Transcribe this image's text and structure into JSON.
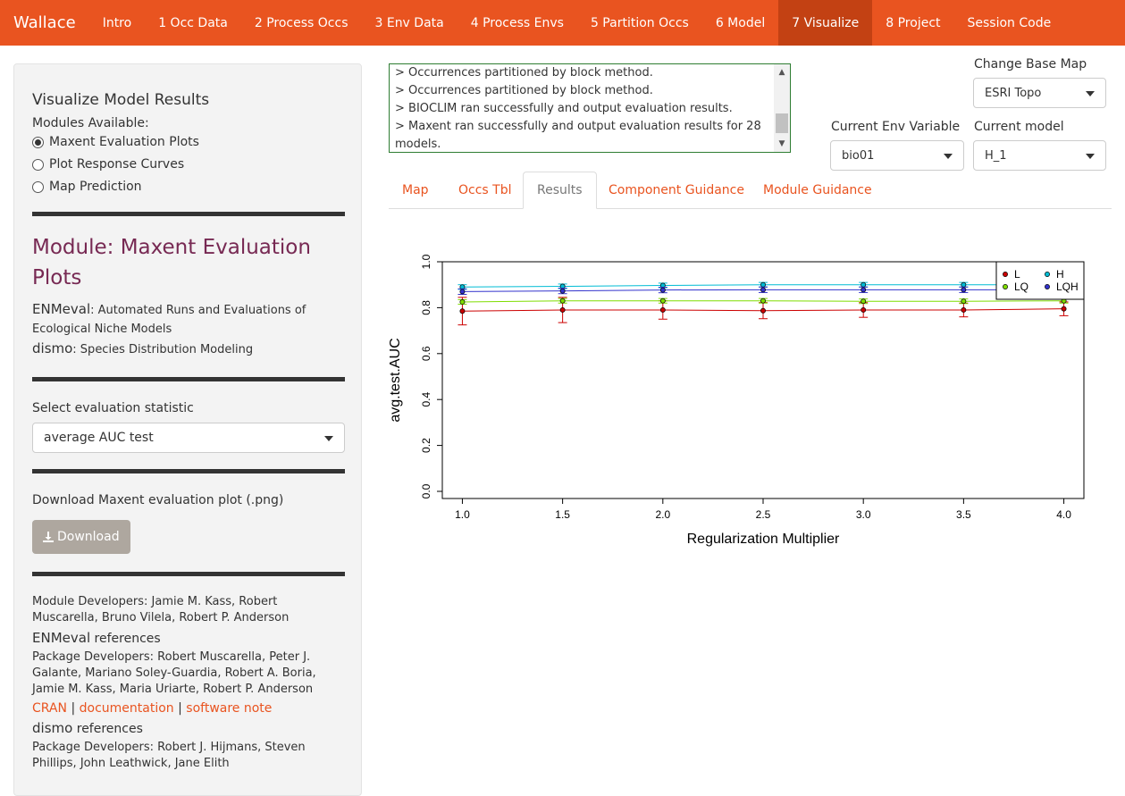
{
  "navbar": {
    "brand": "Wallace",
    "items": [
      {
        "label": "Intro",
        "active": false
      },
      {
        "label": "1 Occ Data",
        "active": false
      },
      {
        "label": "2 Process Occs",
        "active": false
      },
      {
        "label": "3 Env Data",
        "active": false
      },
      {
        "label": "4 Process Envs",
        "active": false
      },
      {
        "label": "5 Partition Occs",
        "active": false
      },
      {
        "label": "6 Model",
        "active": false
      },
      {
        "label": "7 Visualize",
        "active": true
      },
      {
        "label": "8 Project",
        "active": false
      },
      {
        "label": "Session Code",
        "active": false
      }
    ]
  },
  "sidebar": {
    "heading": "Visualize Model Results",
    "modules_label": "Modules Available:",
    "modules": [
      {
        "label": "Maxent Evaluation Plots",
        "selected": true
      },
      {
        "label": "Plot Response Curves",
        "selected": false
      },
      {
        "label": "Map Prediction",
        "selected": false
      }
    ],
    "module_title": "Module: Maxent Evaluation Plots",
    "pkg1_name": "ENMeval",
    "pkg1_desc": ": Automated Runs and Evaluations of Ecological Niche Models",
    "pkg2_name": "dismo",
    "pkg2_desc": ": Species Distribution Modeling",
    "stat_label": "Select evaluation statistic",
    "stat_value": "average AUC test",
    "download_label": "Download Maxent evaluation plot (.png)",
    "download_button": "Download",
    "module_devs": "Module Developers: Jamie M. Kass, Robert Muscarella, Bruno Vilela, Robert P. Anderson",
    "ref1_name": "ENMeval",
    "ref1_suffix": " references",
    "ref1_devs": "Package Developers: Robert Muscarella, Peter J. Galante, Mariano Soley-Guardia, Robert A. Boria, Jamie M. Kass, Maria Uriarte, Robert P. Anderson",
    "links": [
      "CRAN",
      "documentation",
      "software note"
    ],
    "link_sep": " | ",
    "ref2_name": "dismo",
    "ref2_suffix": " references",
    "ref2_devs": "Package Developers: Robert J. Hijmans, Steven Phillips, John Leathwick, Jane Elith"
  },
  "log": {
    "lines": [
      "> Occurrences partitioned by block method.",
      "> Occurrences partitioned by block method.",
      "> BIOCLIM ran successfully and output evaluation results.",
      "> Maxent ran successfully and output evaluation results for 28 models."
    ]
  },
  "controls": {
    "base_map_label": "Change Base Map",
    "base_map_value": "ESRI Topo",
    "env_var_label": "Current Env Variable",
    "env_var_value": "bio01",
    "model_label": "Current model",
    "model_value": "H_1"
  },
  "tabs": [
    {
      "label": "Map",
      "active": false
    },
    {
      "label": "Occs Tbl",
      "active": false
    },
    {
      "label": "Results",
      "active": true
    },
    {
      "label": "Component Guidance",
      "active": false
    },
    {
      "label": "Module Guidance",
      "active": false
    }
  ],
  "chart_data": {
    "type": "line",
    "xlabel": "Regularization Multiplier",
    "ylabel": "avg.test.AUC",
    "x": [
      1.0,
      1.5,
      2.0,
      2.5,
      3.0,
      3.5,
      4.0
    ],
    "x_tick_labels": [
      "1.0",
      "1.5",
      "2.0",
      "2.5",
      "3.0",
      "3.5",
      "4.0"
    ],
    "xlim": [
      0.9,
      4.1
    ],
    "ylim": [
      0.0,
      1.0
    ],
    "y_tick_labels": [
      "0.0",
      "0.2",
      "0.4",
      "0.6",
      "0.8",
      "1.0"
    ],
    "y_ticks": [
      0.0,
      0.2,
      0.4,
      0.6,
      0.8,
      1.0
    ],
    "legend_position": "top-right",
    "series": [
      {
        "name": "L",
        "color": "#cc0000",
        "values": [
          0.785,
          0.79,
          0.79,
          0.787,
          0.79,
          0.79,
          0.795
        ],
        "err": [
          0.06,
          0.055,
          0.04,
          0.035,
          0.032,
          0.03,
          0.03
        ]
      },
      {
        "name": "LQ",
        "color": "#7fdd00",
        "values": [
          0.825,
          0.83,
          0.83,
          0.83,
          0.828,
          0.828,
          0.83
        ],
        "err": [
          0.01,
          0.01,
          0.01,
          0.01,
          0.01,
          0.01,
          0.01
        ]
      },
      {
        "name": "H",
        "color": "#00bcd4",
        "values": [
          0.89,
          0.893,
          0.897,
          0.9,
          0.9,
          0.9,
          0.9
        ],
        "err": [
          0.01,
          0.01,
          0.01,
          0.01,
          0.01,
          0.01,
          0.01
        ]
      },
      {
        "name": "LQH",
        "color": "#3333cc",
        "values": [
          0.87,
          0.873,
          0.877,
          0.878,
          0.878,
          0.878,
          0.878
        ],
        "err": [
          0.012,
          0.012,
          0.012,
          0.012,
          0.012,
          0.012,
          0.012
        ]
      }
    ]
  }
}
